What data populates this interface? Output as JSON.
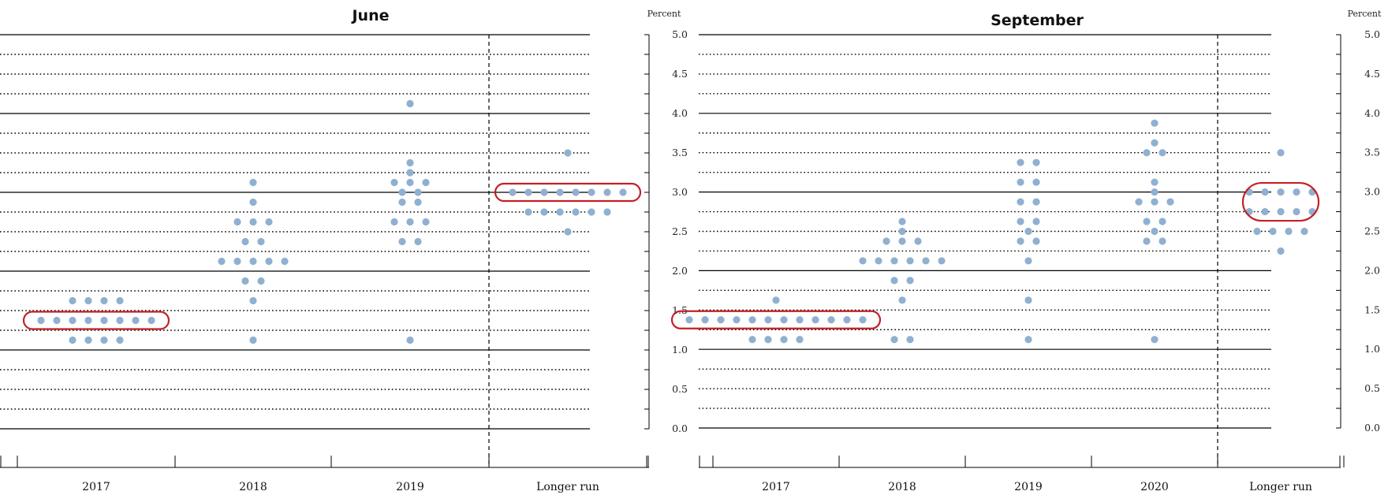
{
  "chart_data": [
    {
      "type": "scatter",
      "title": "June",
      "ylabel": "Percent",
      "ylim": [
        0,
        5
      ],
      "yticks": [
        "0.0",
        "0.5",
        "1.0",
        "1.5",
        "2.0",
        "2.5",
        "3.0",
        "3.5",
        "4.0",
        "4.5",
        "5.0"
      ],
      "categories": [
        "2017",
        "2018",
        "2019",
        "Longer run"
      ],
      "grid": true,
      "dot_color": "#8fb0d1",
      "highlight_color": "#c0151b",
      "dots": [
        {
          "category": "2017",
          "values": [
            1.125,
            1.125,
            1.125,
            1.125,
            1.375,
            1.375,
            1.375,
            1.375,
            1.375,
            1.375,
            1.375,
            1.375,
            1.625,
            1.625,
            1.625,
            1.625
          ]
        },
        {
          "category": "2018",
          "values": [
            1.125,
            1.625,
            1.875,
            1.875,
            2.125,
            2.125,
            2.125,
            2.125,
            2.125,
            2.375,
            2.375,
            2.625,
            2.625,
            2.625,
            2.875,
            3.125
          ]
        },
        {
          "category": "2019",
          "values": [
            1.125,
            2.375,
            2.375,
            2.625,
            2.625,
            2.625,
            2.875,
            2.875,
            3.0,
            3.0,
            3.125,
            3.125,
            3.125,
            3.25,
            3.375,
            4.125
          ]
        },
        {
          "category": "Longer run",
          "values": [
            2.5,
            2.75,
            2.75,
            2.75,
            2.75,
            2.75,
            2.75,
            3.0,
            3.0,
            3.0,
            3.0,
            3.0,
            3.0,
            3.0,
            3.0,
            3.5
          ]
        }
      ],
      "highlights": [
        {
          "category": "2017",
          "value": 1.375
        },
        {
          "category": "Longer run",
          "value": 3.0
        }
      ]
    },
    {
      "type": "scatter",
      "title": "September",
      "ylabel": "Percent",
      "ylim": [
        0,
        5
      ],
      "yticks": [
        "0.0",
        "0.5",
        "1.0",
        "1.5",
        "2.0",
        "2.5",
        "3.0",
        "3.5",
        "4.0",
        "4.5",
        "5.0"
      ],
      "categories": [
        "2017",
        "2018",
        "2019",
        "2020",
        "Longer run"
      ],
      "grid": true,
      "dot_color": "#8fb0d1",
      "highlight_color": "#c0151b",
      "dots": [
        {
          "category": "2017",
          "values": [
            1.125,
            1.125,
            1.125,
            1.125,
            1.375,
            1.375,
            1.375,
            1.375,
            1.375,
            1.375,
            1.375,
            1.375,
            1.375,
            1.375,
            1.375,
            1.375,
            1.625
          ]
        },
        {
          "category": "2018",
          "values": [
            1.125,
            1.125,
            1.625,
            1.875,
            1.875,
            2.125,
            2.125,
            2.125,
            2.125,
            2.125,
            2.125,
            2.375,
            2.375,
            2.375,
            2.5,
            2.625
          ]
        },
        {
          "category": "2019",
          "values": [
            1.125,
            1.625,
            2.125,
            2.375,
            2.375,
            2.5,
            2.625,
            2.625,
            2.875,
            2.875,
            3.125,
            3.125,
            3.375,
            3.375
          ]
        },
        {
          "category": "2020",
          "values": [
            1.125,
            2.375,
            2.375,
            2.5,
            2.625,
            2.625,
            2.875,
            2.875,
            2.875,
            3.0,
            3.125,
            3.5,
            3.5,
            3.625,
            3.875
          ]
        },
        {
          "category": "Longer run",
          "values": [
            2.25,
            2.5,
            2.5,
            2.5,
            2.5,
            2.75,
            2.75,
            2.75,
            2.75,
            2.75,
            3.0,
            3.0,
            3.0,
            3.0,
            3.0,
            3.5
          ]
        }
      ],
      "highlights": [
        {
          "category": "2017",
          "value": 1.375
        },
        {
          "category": "Longer run",
          "value": 2.875
        }
      ]
    }
  ]
}
